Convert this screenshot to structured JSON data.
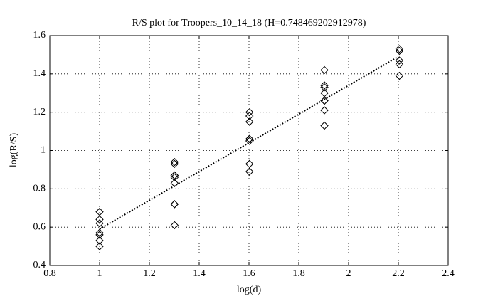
{
  "chart_data": {
    "type": "scatter",
    "title": "R/S plot for Troopers_10_14_18 (H=0.748469202912978)",
    "xlabel": "log(d)",
    "ylabel": "log(R/S)",
    "xlim": [
      0.8,
      2.4
    ],
    "ylim": [
      0.4,
      1.6
    ],
    "xticks": [
      0.8,
      1,
      1.2,
      1.4,
      1.6,
      1.8,
      2,
      2.2,
      2.4
    ],
    "yticks": [
      0.4,
      0.6,
      0.8,
      1,
      1.2,
      1.4,
      1.6
    ],
    "grid": true,
    "series": [
      {
        "color": "#000000",
        "x": [
          1,
          1,
          1,
          1,
          1,
          1,
          1,
          1.301,
          1.301,
          1.301,
          1.301,
          1.301,
          1.301,
          1.301,
          1.301,
          1.301,
          1.602,
          1.602,
          1.602,
          1.602,
          1.602,
          1.602,
          1.602,
          1.602,
          1.903,
          1.903,
          1.903,
          1.903,
          1.903,
          1.903,
          1.903,
          1.903,
          2.204,
          2.204,
          2.204,
          2.204,
          2.204
        ],
        "values": [
          0.68,
          0.64,
          0.62,
          0.57,
          0.56,
          0.53,
          0.5,
          0.94,
          0.93,
          0.87,
          0.87,
          0.86,
          0.83,
          0.72,
          0.72,
          0.61,
          1.2,
          1.18,
          1.15,
          1.06,
          1.06,
          1.05,
          0.93,
          0.89,
          1.42,
          1.34,
          1.33,
          1.3,
          1.26,
          1.26,
          1.21,
          1.13,
          1.53,
          1.52,
          1.47,
          1.45,
          1.39
        ]
      }
    ],
    "fit": {
      "color": "#000000",
      "x": [
        1,
        2.2
      ],
      "values": [
        0.59,
        1.49
      ]
    }
  }
}
